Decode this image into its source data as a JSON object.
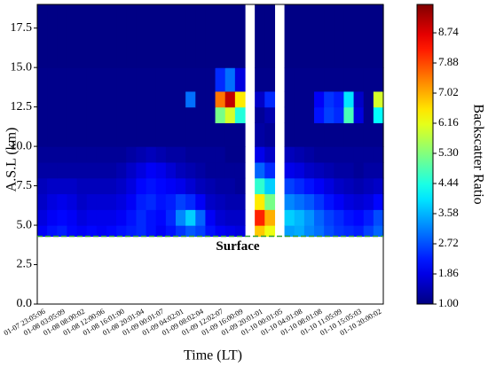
{
  "chart_data": {
    "type": "heatmap",
    "x_label": "Time (LT)",
    "y_label": "A.S.L (km)",
    "colorbar_label": "Backscatter Ratio",
    "colormap": "jet",
    "x": [
      "01-07 23:05:06",
      null,
      "01-08 03:05:09",
      null,
      "01-08 08:00:02",
      null,
      "01-08 12:00:06",
      null,
      "01-08 16:01:00",
      null,
      "01-08 20:01:04",
      null,
      "01-09 00:01:07",
      null,
      "01-09 04:02:01",
      null,
      "01-09 08:02:04",
      null,
      "01-09 12:02:07",
      null,
      "01-09 16:00:09",
      null,
      "01-09 20:01:01",
      null,
      "01-10 00:01:05",
      null,
      "01-10 04:01:08",
      null,
      "01-10 08:01:08",
      null,
      "01-10 11:05:09",
      null,
      "01-10 15:05:03",
      null,
      "01-10 20:00:02"
    ],
    "ybins": [
      4.3,
      5,
      6,
      7,
      8,
      9,
      10,
      11.5,
      12.5,
      13.5,
      15,
      19
    ],
    "z": [
      [
        2.0,
        2.2,
        2.3,
        2.1,
        2.0,
        2.1,
        2.0,
        2.1,
        2.2,
        2.3,
        2.4,
        2.2,
        2.0,
        2.2,
        2.5,
        2.8,
        2.6,
        2.2,
        2.0,
        1.9,
        1.8,
        null,
        6.8,
        6.2,
        null,
        3.4,
        3.5,
        3.2,
        3.0,
        2.7,
        2.5,
        2.4,
        2.3,
        2.6,
        2.9
      ],
      [
        1.8,
        2.0,
        2.1,
        2.0,
        1.8,
        1.9,
        1.9,
        1.9,
        2.0,
        2.2,
        2.4,
        2.2,
        2.1,
        2.4,
        3.2,
        3.8,
        2.9,
        2.0,
        1.7,
        1.6,
        1.6,
        null,
        8.2,
        7.0,
        null,
        3.8,
        3.6,
        3.3,
        2.9,
        2.6,
        2.4,
        2.2,
        2.1,
        2.3,
        2.7
      ],
      [
        1.6,
        1.8,
        1.9,
        1.8,
        1.6,
        1.7,
        1.7,
        1.7,
        1.8,
        2.0,
        2.3,
        2.4,
        2.2,
        2.3,
        2.6,
        2.4,
        2.0,
        1.6,
        1.5,
        1.4,
        1.4,
        null,
        6.5,
        5.2,
        null,
        3.2,
        3.0,
        2.8,
        2.5,
        2.2,
        2.0,
        1.8,
        1.7,
        1.8,
        2.1
      ],
      [
        1.5,
        1.6,
        1.6,
        1.6,
        1.5,
        1.5,
        1.5,
        1.5,
        1.6,
        1.8,
        2.1,
        2.2,
        2.1,
        2.0,
        1.9,
        1.7,
        1.5,
        1.4,
        1.3,
        1.3,
        1.2,
        null,
        4.6,
        3.8,
        null,
        2.6,
        2.4,
        2.2,
        2.0,
        1.8,
        1.6,
        1.5,
        1.4,
        1.5,
        1.6
      ],
      [
        1.3,
        1.3,
        1.3,
        1.3,
        1.3,
        1.3,
        1.3,
        1.3,
        1.4,
        1.6,
        1.8,
        2.0,
        1.9,
        1.7,
        1.5,
        1.4,
        1.3,
        1.2,
        1.2,
        1.2,
        1.2,
        null,
        2.9,
        2.4,
        null,
        1.9,
        1.8,
        1.6,
        1.5,
        1.4,
        1.3,
        1.3,
        1.2,
        1.3,
        1.3
      ],
      [
        1.2,
        1.2,
        1.2,
        1.2,
        1.2,
        1.2,
        1.2,
        1.2,
        1.2,
        1.3,
        1.4,
        1.5,
        1.4,
        1.3,
        1.3,
        1.2,
        1.2,
        1.2,
        1.2,
        1.1,
        1.1,
        null,
        1.9,
        1.6,
        null,
        1.5,
        1.4,
        1.3,
        1.2,
        1.2,
        1.2,
        1.2,
        1.2,
        1.2,
        1.2
      ],
      [
        1.1,
        1.1,
        1.1,
        1.1,
        1.1,
        1.1,
        1.1,
        1.1,
        1.1,
        1.1,
        1.1,
        1.1,
        1.1,
        1.1,
        1.1,
        1.1,
        1.1,
        1.1,
        1.1,
        1.1,
        1.1,
        null,
        1.3,
        1.2,
        null,
        1.1,
        1.1,
        1.1,
        1.1,
        1.1,
        1.1,
        1.1,
        1.1,
        1.1,
        1.1
      ],
      [
        1.1,
        1.1,
        1.1,
        1.1,
        1.1,
        1.1,
        1.1,
        1.1,
        1.1,
        1.1,
        1.1,
        1.1,
        1.1,
        1.1,
        1.1,
        1.1,
        1.1,
        1.1,
        5.2,
        6.0,
        4.5,
        null,
        1.2,
        1.4,
        null,
        1.1,
        1.1,
        1.1,
        2.2,
        2.6,
        2.4,
        4.8,
        1.8,
        1.1,
        4.2
      ],
      [
        1.1,
        1.1,
        1.1,
        1.1,
        1.1,
        1.1,
        1.1,
        1.1,
        1.1,
        1.1,
        1.1,
        1.1,
        1.1,
        1.1,
        1.1,
        3.0,
        1.1,
        1.1,
        7.5,
        9.0,
        6.5,
        null,
        1.6,
        2.4,
        null,
        1.1,
        1.1,
        1.1,
        2.0,
        2.5,
        2.3,
        4.0,
        1.6,
        1.1,
        6.0
      ],
      [
        1.1,
        1.1,
        1.1,
        1.1,
        1.1,
        1.1,
        1.1,
        1.1,
        1.1,
        1.1,
        1.1,
        1.1,
        1.1,
        1.1,
        1.1,
        1.1,
        1.1,
        1.1,
        2.4,
        3.0,
        1.8,
        null,
        1.1,
        1.1,
        null,
        1.1,
        1.1,
        1.1,
        1.1,
        1.1,
        1.1,
        1.1,
        1.1,
        1.1,
        1.1
      ],
      [
        1.05,
        1.05,
        1.05,
        1.05,
        1.05,
        1.05,
        1.05,
        1.05,
        1.05,
        1.05,
        1.05,
        1.05,
        1.05,
        1.05,
        1.05,
        1.05,
        1.05,
        1.05,
        1.05,
        1.05,
        1.05,
        null,
        1.05,
        1.05,
        null,
        1.05,
        1.05,
        1.05,
        1.05,
        1.05,
        1.05,
        1.05,
        1.05,
        1.05,
        1.05
      ]
    ],
    "ylim": [
      0,
      19
    ],
    "yticks": [
      {
        "value": 0,
        "label": "0.0"
      },
      2.5,
      {
        "value": 5,
        "label": "5.0"
      },
      7.5,
      {
        "value": 10,
        "label": "10.0"
      },
      12.5,
      {
        "value": 15,
        "label": "15.0"
      },
      17.5
    ],
    "clim": [
      1,
      9.55
    ],
    "cticks": [
      {
        "value": 1,
        "label": "1.00"
      },
      1.86,
      2.72,
      3.58,
      4.44,
      {
        "value": 5.3,
        "label": "5.30"
      },
      6.16,
      7.02,
      7.88,
      8.74
    ],
    "surface": {
      "label": "Surface",
      "value": 4.3,
      "color": "#2e9e2e",
      "label_color": "#c0392b"
    }
  }
}
